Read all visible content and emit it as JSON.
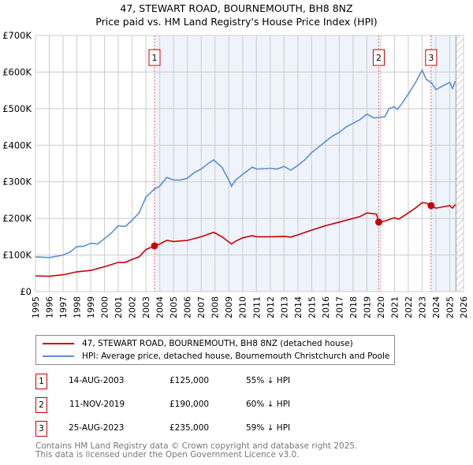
{
  "header": {
    "title": "47, STEWART ROAD, BOURNEMOUTH, BH8 8NZ",
    "subtitle": "Price paid vs. HM Land Registry's House Price Index (HPI)"
  },
  "colors": {
    "property": "#cc0000",
    "hpi": "#5b8fd4",
    "shade": "#eef3fc"
  },
  "chart_data": {
    "type": "line",
    "title": "Price paid vs. HM Land Registry's House Price Index (HPI)",
    "xlim": [
      1995,
      2026
    ],
    "ylim": [
      0,
      700000
    ],
    "x_ticks": [
      "1995",
      "1996",
      "1997",
      "1998",
      "1999",
      "2000",
      "2001",
      "2002",
      "2003",
      "2004",
      "2005",
      "2006",
      "2007",
      "2008",
      "2009",
      "2010",
      "2011",
      "2012",
      "2013",
      "2014",
      "2015",
      "2016",
      "2017",
      "2018",
      "2019",
      "2020",
      "2021",
      "2022",
      "2023",
      "2024",
      "2025",
      "2026"
    ],
    "y_ticks": [
      {
        "v": 0,
        "label": "£0"
      },
      {
        "v": 100000,
        "label": "£100K"
      },
      {
        "v": 200000,
        "label": "£200K"
      },
      {
        "v": 300000,
        "label": "£300K"
      },
      {
        "v": 400000,
        "label": "£400K"
      },
      {
        "v": 500000,
        "label": "£500K"
      },
      {
        "v": 600000,
        "label": "£600K"
      },
      {
        "v": 700000,
        "label": "£700K"
      }
    ],
    "grid": true,
    "series": [
      {
        "name": "47, STEWART ROAD, BOURNEMOUTH, BH8 8NZ (detached house)",
        "color": "#cc0000",
        "x": [
          1995,
          1996,
          1997,
          1998,
          1999,
          2000,
          2001,
          2001.5,
          2002,
          2002.5,
          2003,
          2003.62,
          2004,
          2004.5,
          2005,
          2006,
          2007,
          2007.9,
          2008.5,
          2009.2,
          2009.5,
          2010,
          2010.7,
          2011,
          2012,
          2013,
          2013.5,
          2014,
          2015,
          2016,
          2017,
          2018,
          2018.5,
          2019,
          2019.7,
          2019.86,
          2020.3,
          2021,
          2021.3,
          2022,
          2022.5,
          2023,
          2023.3,
          2023.65,
          2024,
          2025,
          2025.2,
          2025.4
        ],
        "y": [
          43000,
          42000,
          46000,
          54000,
          58000,
          68000,
          80000,
          80000,
          88000,
          95000,
          115000,
          125000,
          130000,
          140000,
          137000,
          140000,
          150000,
          162000,
          150000,
          130000,
          138000,
          147000,
          153000,
          150000,
          150000,
          151000,
          149000,
          155000,
          168000,
          180000,
          190000,
          200000,
          205000,
          215000,
          212000,
          190000,
          193000,
          202000,
          198000,
          215000,
          228000,
          243000,
          242000,
          235000,
          228000,
          235000,
          228000,
          238000
        ]
      },
      {
        "name": "HPI: Average price, detached house, Bournemouth Christchurch and Poole",
        "color": "#5b8fd4",
        "x": [
          1995,
          1996,
          1997,
          1997.5,
          1998,
          1998.5,
          1999,
          1999.5,
          2000,
          2000.5,
          2001,
          2001.5,
          2002,
          2002.5,
          2003,
          2003.6,
          2004,
          2004.5,
          2005,
          2005.5,
          2006,
          2006.5,
          2007,
          2007.5,
          2007.9,
          2008.5,
          2009,
          2009.2,
          2009.5,
          2010,
          2010.7,
          2011,
          2012,
          2012.5,
          2013,
          2013.5,
          2014,
          2014.5,
          2015,
          2015.5,
          2016,
          2016.5,
          2017,
          2017.5,
          2018,
          2018.5,
          2019,
          2019.5,
          2019.86,
          2020.3,
          2020.6,
          2021,
          2021.2,
          2021.5,
          2022,
          2022.5,
          2023,
          2023.3,
          2023.7,
          2024,
          2024.5,
          2025,
          2025.2,
          2025.4
        ],
        "y": [
          95000,
          93000,
          100000,
          108000,
          123000,
          124000,
          132000,
          130000,
          145000,
          160000,
          180000,
          178000,
          195000,
          215000,
          258000,
          280000,
          288000,
          312000,
          305000,
          305000,
          310000,
          325000,
          335000,
          350000,
          360000,
          340000,
          305000,
          288000,
          305000,
          320000,
          340000,
          335000,
          337000,
          335000,
          342000,
          332000,
          345000,
          360000,
          380000,
          395000,
          410000,
          425000,
          435000,
          450000,
          460000,
          470000,
          485000,
          475000,
          476000,
          478000,
          500000,
          505000,
          498000,
          512000,
          540000,
          570000,
          605000,
          580000,
          570000,
          552000,
          562000,
          572000,
          555000,
          575000
        ]
      }
    ],
    "sales": [
      {
        "label": "1",
        "x": 2003.62,
        "y": 125000
      },
      {
        "label": "2",
        "x": 2019.86,
        "y": 190000
      },
      {
        "label": "3",
        "x": 2023.65,
        "y": 235000
      }
    ],
    "shaded_ranges": [
      [
        2003.62,
        2019.86
      ],
      [
        2023.65,
        2025.45
      ]
    ],
    "forecast_hatch_from": 2025.45,
    "legend": "below"
  },
  "legend": {
    "property": "47, STEWART ROAD, BOURNEMOUTH, BH8 8NZ (detached house)",
    "hpi": "HPI: Average price, detached house, Bournemouth Christchurch and Poole"
  },
  "transactions": [
    {
      "num": "1",
      "date": "14-AUG-2003",
      "price": "£125,000",
      "diff": "55% ↓ HPI"
    },
    {
      "num": "2",
      "date": "11-NOV-2019",
      "price": "£190,000",
      "diff": "60% ↓ HPI"
    },
    {
      "num": "3",
      "date": "25-AUG-2023",
      "price": "£235,000",
      "diff": "59% ↓ HPI"
    }
  ],
  "footer": {
    "line1": "Contains HM Land Registry data © Crown copyright and database right 2025.",
    "line2": "This data is licensed under the Open Government Licence v3.0."
  }
}
